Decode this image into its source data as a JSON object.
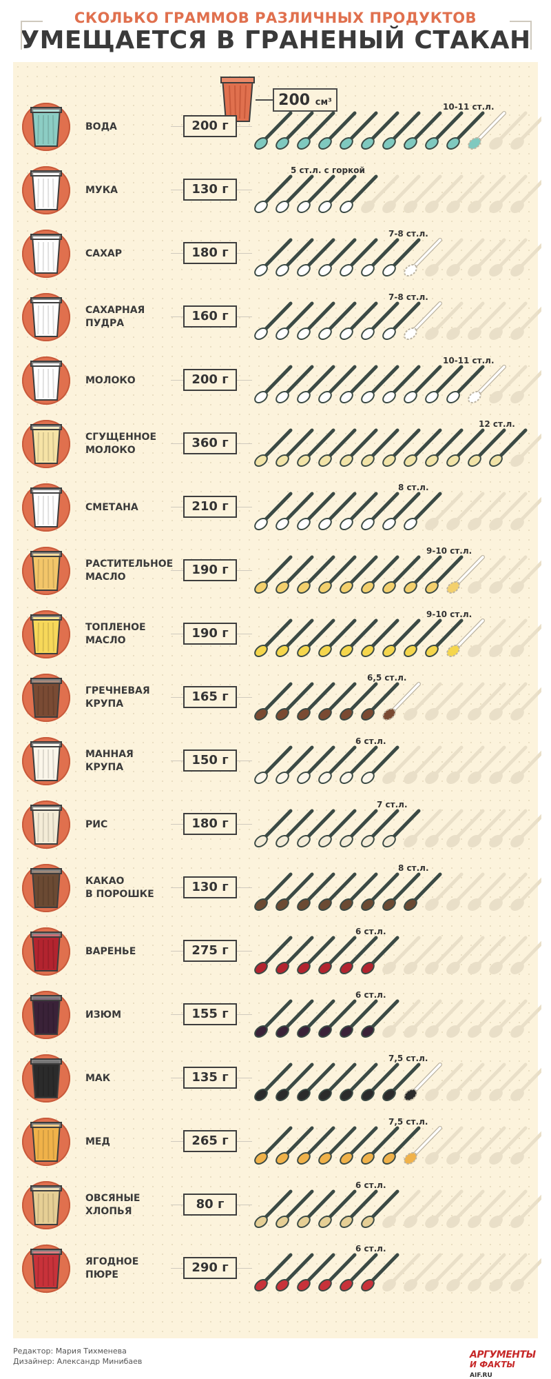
{
  "header": {
    "subtitle": "СКОЛЬКО ГРАММОВ РАЗЛИЧНЫХ ПРОДУКТОВ",
    "title": "УМЕЩАЕТСЯ В ГРАНЕНЫЙ СТАКАН"
  },
  "glass_volume": {
    "value": "200",
    "unit": "см³"
  },
  "colors": {
    "accent": "#e0704e",
    "background": "#fcf3dc",
    "spoon_handle": "#3b4a45",
    "spoon_ghost": "#e9dfc8"
  },
  "total_spoon_slots": 13,
  "items": [
    {
      "name": [
        "ВОДА"
      ],
      "weight": "200 г",
      "spoons_label": "10-11 ст.л.",
      "full_spoons": 10,
      "partial_spoons": 1,
      "fill": "#7fc9bf",
      "glass_fill": "#8ccdc4"
    },
    {
      "name": [
        "МУКА"
      ],
      "weight": "130 г",
      "spoons_label": "5 ст.л. с горкой",
      "full_spoons": 5,
      "partial_spoons": 0,
      "fill": "#ffffff",
      "glass_fill": "#ffffff"
    },
    {
      "name": [
        "САХАР"
      ],
      "weight": "180 г",
      "spoons_label": "7-8 ст.л.",
      "full_spoons": 7,
      "partial_spoons": 1,
      "fill": "#ffffff",
      "glass_fill": "#ffffff"
    },
    {
      "name": [
        "САХАРНАЯ",
        "ПУДРА"
      ],
      "weight": "160 г",
      "spoons_label": "7-8 ст.л.",
      "full_spoons": 7,
      "partial_spoons": 1,
      "fill": "#ffffff",
      "glass_fill": "#ffffff"
    },
    {
      "name": [
        "МОЛОКО"
      ],
      "weight": "200 г",
      "spoons_label": "10-11 ст.л.",
      "full_spoons": 10,
      "partial_spoons": 1,
      "fill": "#ffffff",
      "glass_fill": "#ffffff"
    },
    {
      "name": [
        "СГУЩЕННОЕ",
        "МОЛОКО"
      ],
      "weight": "360 г",
      "spoons_label": "12 ст.л.",
      "full_spoons": 12,
      "partial_spoons": 0,
      "fill": "#f2e4a8",
      "glass_fill": "#f6e3a6"
    },
    {
      "name": [
        "СМЕТАНА"
      ],
      "weight": "210 г",
      "spoons_label": "8 ст.л.",
      "full_spoons": 8,
      "partial_spoons": 0,
      "fill": "#ffffff",
      "glass_fill": "#ffffff"
    },
    {
      "name": [
        "РАСТИТЕЛЬНОЕ",
        "МАСЛО"
      ],
      "weight": "190 г",
      "spoons_label": "9-10 ст.л.",
      "full_spoons": 9,
      "partial_spoons": 1,
      "fill": "#f3d06d",
      "glass_fill": "#f3c66a"
    },
    {
      "name": [
        "ТОПЛЕНОЕ",
        "МАСЛО"
      ],
      "weight": "190 г",
      "spoons_label": "9-10 ст.л.",
      "full_spoons": 9,
      "partial_spoons": 1,
      "fill": "#f5d64c",
      "glass_fill": "#f7d85a"
    },
    {
      "name": [
        "ГРЕЧНЕВАЯ",
        "КРУПА"
      ],
      "weight": "165 г",
      "spoons_label": "6,5 ст.л.",
      "full_spoons": 6,
      "partial_spoons": 1,
      "fill": "#7a4a32",
      "glass_fill": "#7a4b34"
    },
    {
      "name": [
        "МАННАЯ",
        "КРУПА"
      ],
      "weight": "150 г",
      "spoons_label": "6 ст.л.",
      "full_spoons": 6,
      "partial_spoons": 0,
      "fill": "#fbf6ea",
      "glass_fill": "#fbf6ea"
    },
    {
      "name": [
        "РИС"
      ],
      "weight": "180 г",
      "spoons_label": "7 ст.л.",
      "full_spoons": 7,
      "partial_spoons": 0,
      "fill": "#f4ecd7",
      "glass_fill": "#f4ecd7"
    },
    {
      "name": [
        "КАКАО",
        "В ПОРОШКЕ"
      ],
      "weight": "130 г",
      "spoons_label": "8 ст.л.",
      "full_spoons": 8,
      "partial_spoons": 0,
      "fill": "#6b4a33",
      "glass_fill": "#6b4a33"
    },
    {
      "name": [
        "ВАРЕНЬЕ"
      ],
      "weight": "275 г",
      "spoons_label": "6 ст.л.",
      "full_spoons": 6,
      "partial_spoons": 0,
      "fill": "#b3242f",
      "glass_fill": "#b3242f"
    },
    {
      "name": [
        "ИЗЮМ"
      ],
      "weight": "155 г",
      "spoons_label": "6 ст.л.",
      "full_spoons": 6,
      "partial_spoons": 0,
      "fill": "#3a2238",
      "glass_fill": "#3a2238"
    },
    {
      "name": [
        "МАК"
      ],
      "weight": "135 г",
      "spoons_label": "7,5 ст.л.",
      "full_spoons": 7,
      "partial_spoons": 1,
      "fill": "#2b2b2b",
      "glass_fill": "#2b2b2b"
    },
    {
      "name": [
        "МЕД"
      ],
      "weight": "265 г",
      "spoons_label": "7,5 ст.л.",
      "full_spoons": 7,
      "partial_spoons": 1,
      "fill": "#f0b24a",
      "glass_fill": "#f0b24a"
    },
    {
      "name": [
        "ОВСЯНЫЕ",
        "ХЛОПЬЯ"
      ],
      "weight": "80 г",
      "spoons_label": "6 ст.л.",
      "full_spoons": 6,
      "partial_spoons": 0,
      "fill": "#e6cf95",
      "glass_fill": "#e6cf95"
    },
    {
      "name": [
        "ЯГОДНОЕ",
        "ПЮРЕ"
      ],
      "weight": "290 г",
      "spoons_label": "6 ст.л.",
      "full_spoons": 6,
      "partial_spoons": 0,
      "fill": "#c8323a",
      "glass_fill": "#c8323a"
    }
  ],
  "footer": {
    "editor": "Редактор: Мария Тихменева",
    "designer": "Дизайнер: Александр Минибаев",
    "logo_top": "АРГУМЕНТЫ",
    "logo_bottom": "И ФАКТЫ",
    "logo_site": "AIF.RU"
  }
}
